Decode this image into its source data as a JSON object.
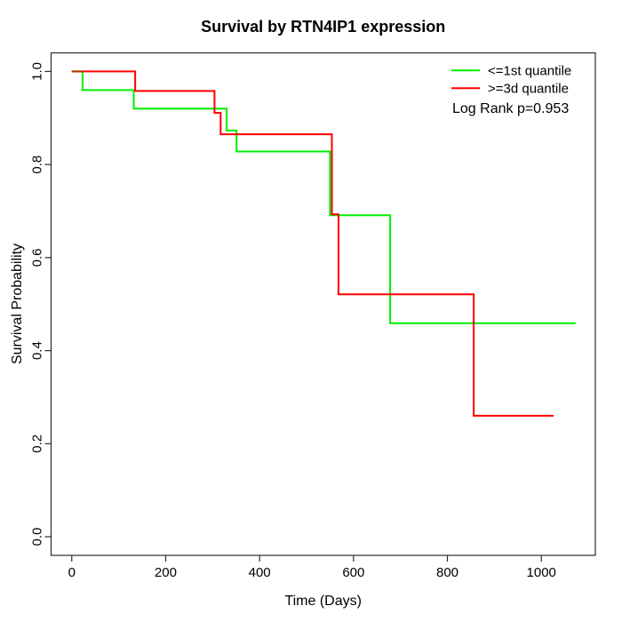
{
  "title": "Survival by RTN4IP1 expression",
  "axes": {
    "xlabel": "Time (Days)",
    "ylabel": "Survival Probability"
  },
  "legend": {
    "items": [
      {
        "label": "<=1st quantile",
        "color": "#00ee00"
      },
      {
        "label": ">=3d quantile",
        "color": "#ff0000"
      }
    ],
    "annotation": "Log Rank p=0.953"
  },
  "chart_data": {
    "type": "line",
    "subtype": "kaplan-meier-step",
    "title": "Survival by RTN4IP1 expression",
    "xlabel": "Time (Days)",
    "ylabel": "Survival Probability",
    "xlim": [
      -44,
      1115
    ],
    "ylim": [
      -0.04,
      1.04
    ],
    "x_ticks": [
      0,
      200,
      400,
      600,
      800,
      1000
    ],
    "x_tick_labels": [
      "0",
      "200",
      "400",
      "600",
      "800",
      "1000"
    ],
    "y_ticks": [
      0.0,
      0.2,
      0.4,
      0.6,
      0.8,
      1.0
    ],
    "y_tick_labels": [
      "0.0",
      "0.2",
      "0.4",
      "0.6",
      "0.8",
      "1.0"
    ],
    "grid": false,
    "legend_position": "top-right",
    "annotation": "Log Rank p=0.953",
    "series": [
      {
        "name": "<=1st quantile",
        "color": "#00ee00",
        "event_times": [
          23,
          132,
          330,
          351,
          550,
          678
        ],
        "survival_after_event": [
          0.96,
          0.92,
          0.873,
          0.828,
          0.691,
          0.459
        ],
        "end_time": 1073,
        "points": [
          [
            0,
            1.0
          ],
          [
            23,
            1.0
          ],
          [
            23,
            0.96
          ],
          [
            132,
            0.96
          ],
          [
            132,
            0.92
          ],
          [
            330,
            0.92
          ],
          [
            330,
            0.873
          ],
          [
            351,
            0.873
          ],
          [
            351,
            0.828
          ],
          [
            550,
            0.828
          ],
          [
            550,
            0.691
          ],
          [
            678,
            0.691
          ],
          [
            678,
            0.459
          ],
          [
            1073,
            0.459
          ]
        ]
      },
      {
        "name": ">=3d quantile",
        "color": "#ff0000",
        "event_times": [
          135,
          304,
          317,
          554,
          568,
          856
        ],
        "survival_after_event": [
          0.958,
          0.911,
          0.865,
          0.693,
          0.521,
          0.26
        ],
        "end_time": 1026,
        "points": [
          [
            0,
            1.0
          ],
          [
            135,
            1.0
          ],
          [
            135,
            0.958
          ],
          [
            304,
            0.958
          ],
          [
            304,
            0.911
          ],
          [
            317,
            0.911
          ],
          [
            317,
            0.865
          ],
          [
            554,
            0.865
          ],
          [
            554,
            0.693
          ],
          [
            568,
            0.693
          ],
          [
            568,
            0.521
          ],
          [
            856,
            0.521
          ],
          [
            856,
            0.26
          ],
          [
            1026,
            0.26
          ]
        ]
      }
    ],
    "overlap_segment": {
      "x_start": 0,
      "x_end": 23,
      "y": 1.0,
      "color": "#b63d00"
    }
  }
}
